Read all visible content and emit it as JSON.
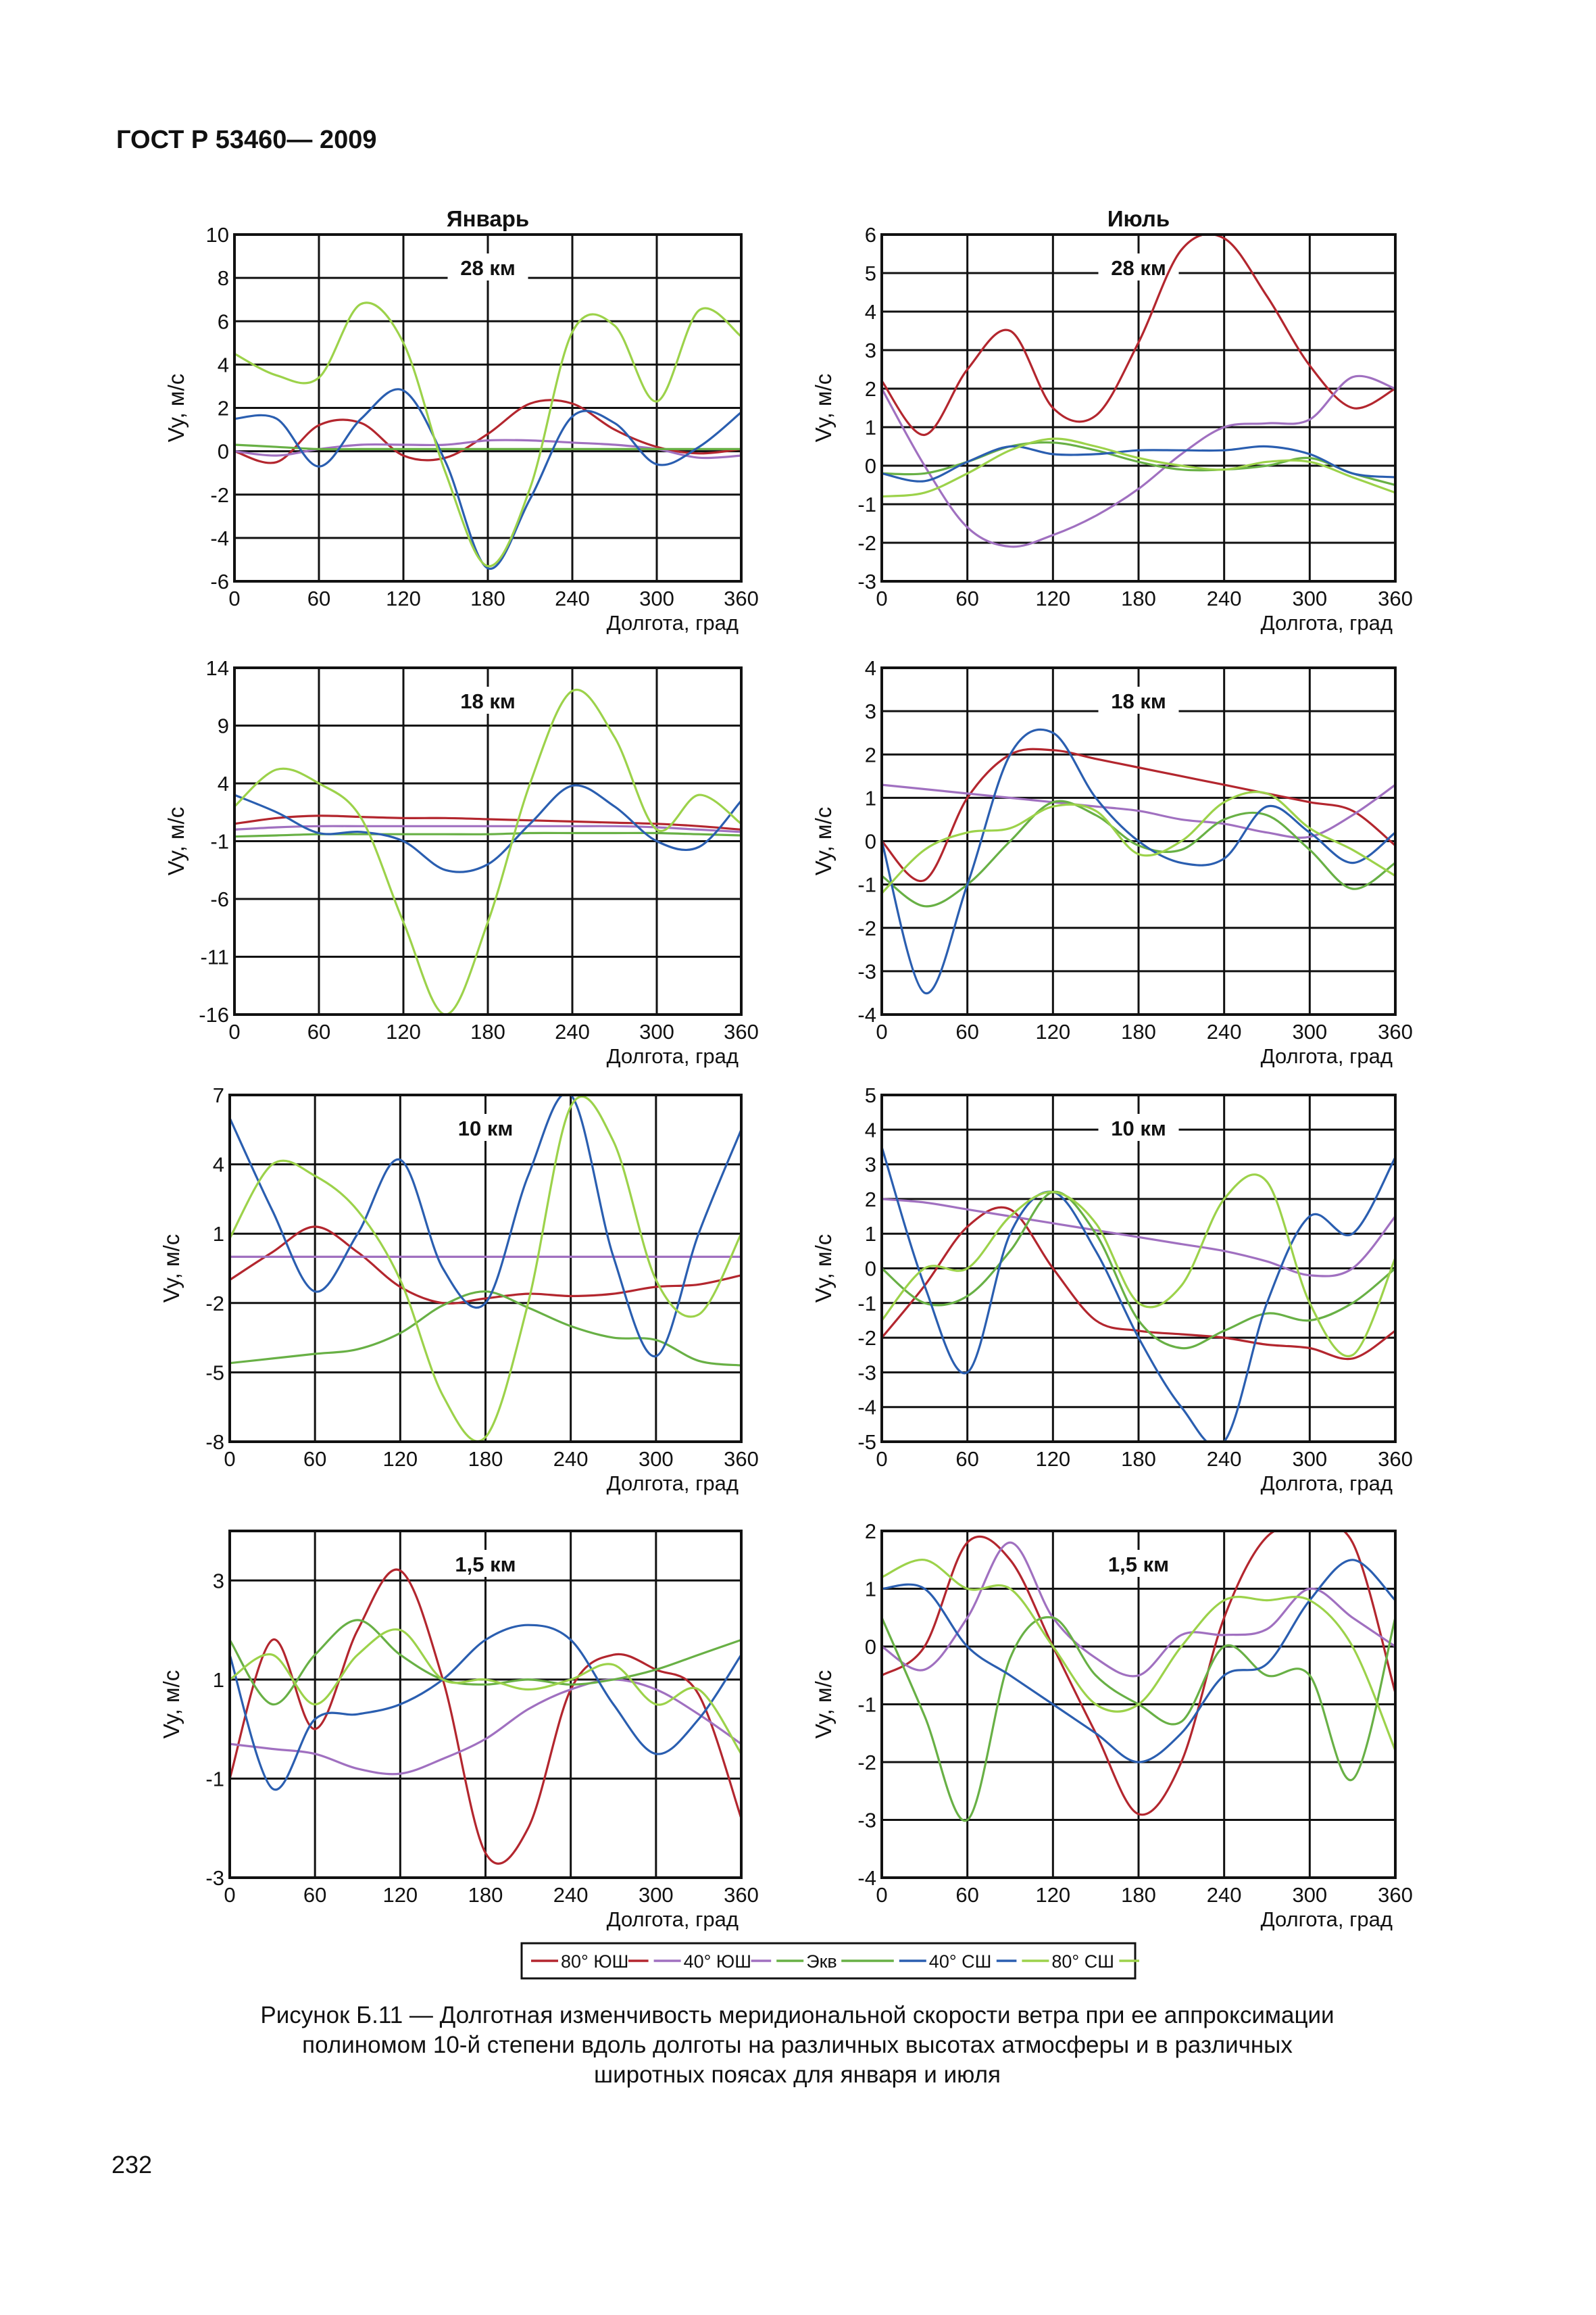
{
  "header": {
    "doc_id": "ГОСТ Р 53460— 2009"
  },
  "figure": {
    "caption_lines": [
      "Рисунок  Б.11 —  Долготная изменчивость меридиональной скорости ветра при ее аппроксимации",
      "полиномом 10-й степени  вдоль долготы  на различных высотах  атмосферы и в различных",
      "широтных поясах для января и июля"
    ]
  },
  "page": {
    "number": "232"
  },
  "chart_data": [
    {
      "type": "line",
      "title": "Январь",
      "annotation": "28 км",
      "ylabel": "Vy, м/с",
      "xlabel": "Долгота, град",
      "xlim": [
        0,
        360
      ],
      "ylim": [
        -6,
        10
      ],
      "xticks": [
        0,
        60,
        120,
        180,
        240,
        300,
        360
      ],
      "yticks": [
        -6,
        -4,
        -2,
        0,
        2,
        4,
        6,
        8,
        10
      ],
      "x": [
        0,
        30,
        60,
        90,
        120,
        150,
        180,
        210,
        240,
        270,
        300,
        330,
        360
      ],
      "series": [
        {
          "name": "80° ЮШ",
          "values": [
            0,
            -0.5,
            1.2,
            1.3,
            -0.2,
            -0.3,
            0.8,
            2.2,
            2.2,
            1.0,
            0.2,
            -0.1,
            0.1
          ]
        },
        {
          "name": "40° ЮШ",
          "values": [
            0,
            -0.2,
            0.1,
            0.3,
            0.3,
            0.3,
            0.5,
            0.5,
            0.4,
            0.3,
            0.1,
            -0.3,
            -0.2
          ]
        },
        {
          "name": "Экв",
          "values": [
            0.3,
            0.2,
            0.1,
            0.1,
            0.1,
            0.1,
            0.1,
            0.1,
            0.1,
            0.1,
            0.1,
            0.1,
            0.1
          ]
        },
        {
          "name": "40° СШ",
          "values": [
            1.5,
            1.5,
            -0.7,
            1.5,
            2.8,
            -0.5,
            -5.4,
            -2.2,
            1.6,
            1.3,
            -0.6,
            0.2,
            1.8
          ]
        },
        {
          "name": "80° СШ",
          "values": [
            4.5,
            3.5,
            3.4,
            6.8,
            5.0,
            -1.0,
            -5.3,
            -1.7,
            5.5,
            5.8,
            2.3,
            6.5,
            5.3
          ]
        }
      ]
    },
    {
      "type": "line",
      "title": "Июль",
      "annotation": "28 км",
      "ylabel": "Vy, м/с",
      "xlabel": "Долгота, град",
      "xlim": [
        0,
        360
      ],
      "ylim": [
        -3,
        6
      ],
      "xticks": [
        0,
        60,
        120,
        180,
        240,
        300,
        360
      ],
      "yticks": [
        -3,
        -2,
        -1,
        0,
        1,
        2,
        3,
        4,
        5,
        6
      ],
      "x": [
        0,
        30,
        60,
        90,
        120,
        150,
        180,
        210,
        240,
        270,
        300,
        330,
        360
      ],
      "series": [
        {
          "name": "80° ЮШ",
          "values": [
            2.2,
            0.8,
            2.5,
            3.5,
            1.5,
            1.3,
            3.2,
            5.6,
            5.9,
            4.4,
            2.6,
            1.5,
            2.0
          ]
        },
        {
          "name": "40° ЮШ",
          "values": [
            2.0,
            0.0,
            -1.6,
            -2.1,
            -1.8,
            -1.3,
            -0.6,
            0.3,
            1.0,
            1.1,
            1.2,
            2.3,
            2.0
          ]
        },
        {
          "name": "Экв",
          "values": [
            -0.2,
            -0.2,
            0.1,
            0.5,
            0.6,
            0.4,
            0.1,
            -0.1,
            -0.1,
            0.0,
            0.2,
            -0.2,
            -0.5
          ]
        },
        {
          "name": "40° СШ",
          "values": [
            -0.2,
            -0.4,
            0.1,
            0.5,
            0.3,
            0.3,
            0.4,
            0.4,
            0.4,
            0.5,
            0.3,
            -0.2,
            -0.3
          ]
        },
        {
          "name": "80° СШ",
          "values": [
            -0.8,
            -0.7,
            -0.2,
            0.4,
            0.7,
            0.5,
            0.2,
            0.0,
            -0.1,
            0.1,
            0.1,
            -0.3,
            -0.7
          ]
        }
      ]
    },
    {
      "type": "line",
      "title": "",
      "annotation": "18 км",
      "ylabel": "Vy, м/с",
      "xlabel": "Долгота, град",
      "xlim": [
        0,
        360
      ],
      "ylim": [
        -16,
        14
      ],
      "xticks": [
        0,
        60,
        120,
        180,
        240,
        300,
        360
      ],
      "yticks": [
        -16,
        -11,
        -6,
        -1,
        4,
        9,
        14
      ],
      "x": [
        0,
        30,
        60,
        90,
        120,
        150,
        180,
        210,
        240,
        270,
        300,
        330,
        360
      ],
      "series": [
        {
          "name": "80° ЮШ",
          "values": [
            0.5,
            1.0,
            1.2,
            1.1,
            1.0,
            1.0,
            0.9,
            0.8,
            0.7,
            0.6,
            0.5,
            0.3,
            0.0
          ]
        },
        {
          "name": "40° ЮШ",
          "values": [
            0.0,
            0.2,
            0.3,
            0.3,
            0.3,
            0.3,
            0.3,
            0.3,
            0.3,
            0.3,
            0.2,
            0.0,
            -0.2
          ]
        },
        {
          "name": "Экв",
          "values": [
            -0.6,
            -0.5,
            -0.4,
            -0.4,
            -0.4,
            -0.4,
            -0.4,
            -0.3,
            -0.3,
            -0.3,
            -0.3,
            -0.4,
            -0.5
          ]
        },
        {
          "name": "40° СШ",
          "values": [
            3.0,
            1.5,
            -0.3,
            -0.2,
            -1.0,
            -3.5,
            -3.0,
            0.5,
            3.8,
            2.0,
            -1.0,
            -1.5,
            2.5
          ]
        },
        {
          "name": "80° СШ",
          "values": [
            2.0,
            5.2,
            4.0,
            1.0,
            -8.0,
            -16.0,
            -8.0,
            4.0,
            12.0,
            8.0,
            0.0,
            3.0,
            0.5
          ]
        }
      ]
    },
    {
      "type": "line",
      "title": "",
      "annotation": "18 км",
      "ylabel": "Vy, м/с",
      "xlabel": "Долгота, град",
      "xlim": [
        0,
        360
      ],
      "ylim": [
        -4,
        4
      ],
      "xticks": [
        0,
        60,
        120,
        180,
        240,
        300,
        360
      ],
      "yticks": [
        -4,
        -3,
        -2,
        -1,
        0,
        1,
        2,
        3,
        4
      ],
      "x": [
        0,
        30,
        60,
        90,
        120,
        150,
        180,
        210,
        240,
        270,
        300,
        330,
        360
      ],
      "series": [
        {
          "name": "80° ЮШ",
          "values": [
            0.0,
            -0.9,
            1.0,
            2.0,
            2.1,
            1.9,
            1.7,
            1.5,
            1.3,
            1.1,
            0.9,
            0.7,
            -0.1
          ]
        },
        {
          "name": "40° ЮШ",
          "values": [
            1.3,
            1.2,
            1.1,
            1.0,
            0.9,
            0.8,
            0.7,
            0.5,
            0.4,
            0.2,
            0.1,
            0.6,
            1.3
          ]
        },
        {
          "name": "Экв",
          "values": [
            -0.8,
            -1.5,
            -1.0,
            0.0,
            0.9,
            0.6,
            -0.1,
            -0.2,
            0.5,
            0.6,
            -0.2,
            -1.1,
            -0.5
          ]
        },
        {
          "name": "40° СШ",
          "values": [
            0.0,
            -3.5,
            -1.0,
            2.0,
            2.5,
            1.0,
            0.0,
            -0.5,
            -0.4,
            0.8,
            0.2,
            -0.5,
            0.2
          ]
        },
        {
          "name": "80° СШ",
          "values": [
            -1.2,
            -0.2,
            0.2,
            0.3,
            0.8,
            0.7,
            -0.3,
            0.0,
            0.9,
            1.1,
            0.3,
            -0.2,
            -0.8
          ]
        }
      ]
    },
    {
      "type": "line",
      "title": "",
      "annotation": "10 км",
      "ylabel": "Vy, м/с",
      "xlabel": "Долгота, град",
      "xlim": [
        0,
        360
      ],
      "ylim": [
        -8,
        7
      ],
      "xticks": [
        0,
        60,
        120,
        180,
        240,
        300,
        360
      ],
      "yticks": [
        -8,
        -5,
        -2,
        1,
        4,
        7
      ],
      "x": [
        0,
        30,
        60,
        90,
        120,
        150,
        180,
        210,
        240,
        270,
        300,
        330,
        360
      ],
      "series": [
        {
          "name": "80° ЮШ",
          "values": [
            -1.0,
            0.2,
            1.3,
            0.2,
            -1.3,
            -2.0,
            -1.8,
            -1.6,
            -1.7,
            -1.6,
            -1.3,
            -1.2,
            -0.8
          ]
        },
        {
          "name": "40° ЮШ",
          "values": [
            0.0,
            0.0,
            0.0,
            0.0,
            0.0,
            0.0,
            0.0,
            0.0,
            0.0,
            0.0,
            0.0,
            0.0,
            0.0
          ]
        },
        {
          "name": "Экв",
          "values": [
            -4.6,
            -4.4,
            -4.2,
            -4.0,
            -3.3,
            -2.1,
            -1.5,
            -2.2,
            -3.0,
            -3.5,
            -3.6,
            -4.5,
            -4.7
          ]
        },
        {
          "name": "40° СШ",
          "values": [
            6.0,
            2.0,
            -1.5,
            1.0,
            4.2,
            -0.5,
            -2.0,
            3.5,
            7.0,
            0.0,
            -4.3,
            1.0,
            5.5
          ]
        },
        {
          "name": "80° СШ",
          "values": [
            0.8,
            4.0,
            3.5,
            2.0,
            -1.0,
            -6.0,
            -7.8,
            -2.0,
            6.5,
            5.0,
            -1.0,
            -2.5,
            1.0
          ]
        }
      ]
    },
    {
      "type": "line",
      "title": "",
      "annotation": "10 км",
      "ylabel": "Vy, м/с",
      "xlabel": "Долгота, град",
      "xlim": [
        0,
        360
      ],
      "ylim": [
        -5,
        5
      ],
      "xticks": [
        0,
        60,
        120,
        180,
        240,
        300,
        360
      ],
      "yticks": [
        -5,
        -4,
        -3,
        -2,
        -1,
        0,
        1,
        2,
        3,
        4,
        5
      ],
      "x": [
        0,
        30,
        60,
        90,
        120,
        150,
        180,
        210,
        240,
        270,
        300,
        330,
        360
      ],
      "series": [
        {
          "name": "80° ЮШ",
          "values": [
            -2.0,
            -0.5,
            1.2,
            1.7,
            0.0,
            -1.5,
            -1.8,
            -1.9,
            -2.0,
            -2.2,
            -2.3,
            -2.6,
            -1.8
          ]
        },
        {
          "name": "40° ЮШ",
          "values": [
            2.0,
            1.9,
            1.7,
            1.5,
            1.3,
            1.1,
            0.9,
            0.7,
            0.5,
            0.2,
            -0.2,
            0.0,
            1.5
          ]
        },
        {
          "name": "Экв",
          "values": [
            0.0,
            -1.0,
            -0.8,
            0.5,
            2.2,
            1.0,
            -1.5,
            -2.3,
            -1.8,
            -1.3,
            -1.5,
            -1.0,
            0.0
          ]
        },
        {
          "name": "40° СШ",
          "values": [
            3.5,
            -0.5,
            -3.0,
            1.0,
            2.2,
            0.5,
            -2.0,
            -4.0,
            -5.0,
            -1.0,
            1.5,
            1.0,
            3.2
          ]
        },
        {
          "name": "80° СШ",
          "values": [
            -1.5,
            0.0,
            0.0,
            1.5,
            2.2,
            1.3,
            -1.0,
            -0.5,
            2.0,
            2.5,
            -1.0,
            -2.5,
            0.3
          ]
        }
      ]
    },
    {
      "type": "line",
      "title": "",
      "annotation": "1,5 км",
      "ylabel": "Vy, м/с",
      "xlabel": "Долгота, град",
      "xlim": [
        0,
        360
      ],
      "ylim": [
        -3,
        4
      ],
      "xticks": [
        0,
        60,
        120,
        180,
        240,
        300,
        360
      ],
      "yticks": [
        -3,
        -1,
        1,
        3
      ],
      "x": [
        0,
        30,
        60,
        90,
        120,
        150,
        180,
        210,
        240,
        270,
        300,
        330,
        360
      ],
      "series": [
        {
          "name": "80° ЮШ",
          "values": [
            -1.0,
            1.8,
            0.0,
            2.0,
            3.2,
            1.0,
            -2.5,
            -2.0,
            0.8,
            1.5,
            1.2,
            0.7,
            -1.8
          ]
        },
        {
          "name": "40° ЮШ",
          "values": [
            -0.3,
            -0.4,
            -0.5,
            -0.8,
            -0.9,
            -0.6,
            -0.2,
            0.4,
            0.8,
            1.0,
            0.8,
            0.3,
            -0.3
          ]
        },
        {
          "name": "Экв",
          "values": [
            1.8,
            0.5,
            1.5,
            2.2,
            1.5,
            1.0,
            0.9,
            1.0,
            0.9,
            1.0,
            1.2,
            1.5,
            1.8
          ]
        },
        {
          "name": "40° СШ",
          "values": [
            1.5,
            -1.2,
            0.2,
            0.3,
            0.5,
            1.0,
            1.8,
            2.1,
            1.8,
            0.5,
            -0.5,
            0.2,
            1.5
          ]
        },
        {
          "name": "80° СШ",
          "values": [
            1.0,
            1.5,
            0.5,
            1.5,
            2.0,
            1.0,
            1.0,
            0.8,
            1.0,
            1.3,
            0.5,
            0.8,
            -0.5
          ]
        }
      ]
    },
    {
      "type": "line",
      "title": "",
      "annotation": "1,5 км",
      "ylabel": "Vy, м/с",
      "xlabel": "Долгота, град",
      "xlim": [
        0,
        360
      ],
      "ylim": [
        -4,
        2
      ],
      "xticks": [
        0,
        60,
        120,
        180,
        240,
        300,
        360
      ],
      "yticks": [
        -4,
        -3,
        -2,
        -1,
        0,
        1,
        2
      ],
      "x": [
        0,
        30,
        60,
        90,
        120,
        150,
        180,
        210,
        240,
        270,
        300,
        330,
        360
      ],
      "series": [
        {
          "name": "80° ЮШ",
          "values": [
            -0.5,
            0.0,
            1.8,
            1.5,
            0.0,
            -1.5,
            -2.9,
            -2.0,
            0.5,
            1.9,
            2.0,
            1.8,
            -0.8
          ]
        },
        {
          "name": "40° ЮШ",
          "values": [
            0.0,
            -0.4,
            0.5,
            1.8,
            0.5,
            -0.2,
            -0.5,
            0.2,
            0.2,
            0.3,
            1.0,
            0.5,
            0.0
          ]
        },
        {
          "name": "Экв",
          "values": [
            0.5,
            -1.2,
            -3.0,
            -0.2,
            0.5,
            -0.5,
            -1.0,
            -1.3,
            0.0,
            -0.5,
            -0.5,
            -2.3,
            0.5
          ]
        },
        {
          "name": "40° СШ",
          "values": [
            1.0,
            1.0,
            0.0,
            -0.5,
            -1.0,
            -1.5,
            -2.0,
            -1.5,
            -0.5,
            -0.3,
            0.8,
            1.5,
            0.8
          ]
        },
        {
          "name": "80° СШ",
          "values": [
            1.2,
            1.5,
            1.0,
            1.0,
            0.0,
            -1.0,
            -1.0,
            0.0,
            0.8,
            0.8,
            0.8,
            0.0,
            -1.8
          ]
        }
      ]
    }
  ],
  "legend": {
    "entries": [
      {
        "name": "80° ЮШ",
        "color": "#b3262e"
      },
      {
        "name": "40° ЮШ",
        "color": "#a070c0"
      },
      {
        "name": "Экв",
        "color": "#68b045"
      },
      {
        "name": "40° СШ",
        "color": "#2a5eb0"
      },
      {
        "name": "80° СШ",
        "color": "#9cd24a"
      }
    ]
  }
}
